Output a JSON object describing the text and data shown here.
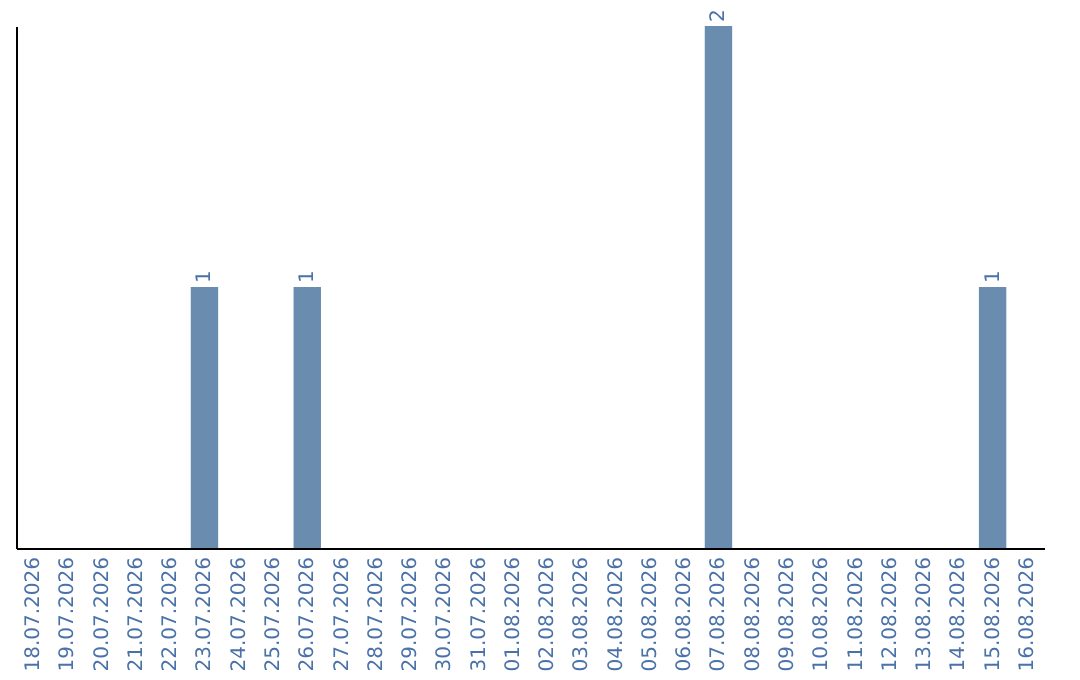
{
  "chart_data": {
    "type": "bar",
    "categories": [
      "18.07.2026",
      "19.07.2026",
      "20.07.2026",
      "21.07.2026",
      "22.07.2026",
      "23.07.2026",
      "24.07.2026",
      "25.07.2026",
      "26.07.2026",
      "27.07.2026",
      "28.07.2026",
      "29.07.2026",
      "30.07.2026",
      "31.07.2026",
      "01.08.2026",
      "02.08.2026",
      "03.08.2026",
      "04.08.2026",
      "05.08.2026",
      "06.08.2026",
      "07.08.2026",
      "08.08.2026",
      "09.08.2026",
      "10.08.2026",
      "11.08.2026",
      "12.08.2026",
      "13.08.2026",
      "14.08.2026",
      "15.08.2026",
      "16.08.2026"
    ],
    "values": [
      0,
      0,
      0,
      0,
      0,
      1,
      0,
      0,
      1,
      0,
      0,
      0,
      0,
      0,
      0,
      0,
      0,
      0,
      0,
      0,
      2,
      0,
      0,
      0,
      0,
      0,
      0,
      0,
      1,
      0
    ],
    "value_labels": [
      null,
      null,
      null,
      null,
      null,
      "1",
      null,
      null,
      "1",
      null,
      null,
      null,
      null,
      null,
      null,
      null,
      null,
      null,
      null,
      null,
      "2",
      null,
      null,
      null,
      null,
      null,
      null,
      null,
      "1",
      null
    ],
    "color": "#6a8caf",
    "ylim": [
      0,
      2
    ],
    "tick_labels": "x"
  }
}
